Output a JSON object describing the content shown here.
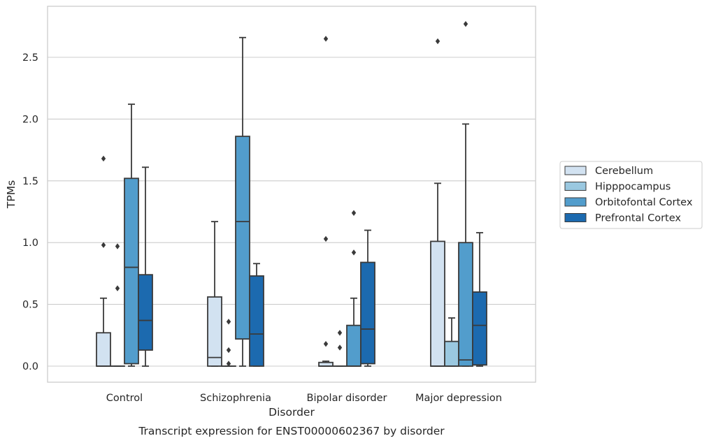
{
  "chart_data": {
    "type": "box",
    "title": "",
    "caption": "Transcript expression for ENST00000602367 by disorder",
    "xlabel": "Disorder",
    "ylabel": "TPMs",
    "ylim": [
      -0.13,
      2.92
    ],
    "yticks": [
      0.0,
      0.5,
      1.0,
      1.5,
      2.0,
      2.5
    ],
    "ytick_labels": [
      "0.0",
      "0.5",
      "1.0",
      "1.5",
      "2.0",
      "2.5"
    ],
    "grid": true,
    "legend_position": "right",
    "categories": [
      "Control",
      "Schizophrenia",
      "Bipolar disorder",
      "Major depression"
    ],
    "series": [
      {
        "name": "Cerebellum",
        "color": "#d2e2f1",
        "boxes": [
          {
            "q1": 0.0,
            "median": 0.0,
            "q3": 0.27,
            "whisker_low": 0.0,
            "whisker_high": 0.55,
            "outliers": [
              1.68,
              0.98
            ]
          },
          {
            "q1": 0.0,
            "median": 0.07,
            "q3": 0.56,
            "whisker_low": 0.0,
            "whisker_high": 1.17,
            "outliers": []
          },
          {
            "q1": 0.0,
            "median": 0.0,
            "q3": 0.03,
            "whisker_low": 0.0,
            "whisker_high": 0.04,
            "outliers": [
              2.65,
              1.03,
              0.18
            ]
          },
          {
            "q1": 0.0,
            "median": 0.0,
            "q3": 1.01,
            "whisker_low": 0.0,
            "whisker_high": 1.48,
            "outliers": [
              2.63
            ]
          }
        ]
      },
      {
        "name": "Hipppocampus",
        "color": "#9ac8e0",
        "boxes": [
          {
            "q1": 0.0,
            "median": 0.0,
            "q3": 0.0,
            "whisker_low": 0.0,
            "whisker_high": 0.0,
            "outliers": [
              0.97,
              0.63
            ]
          },
          {
            "q1": 0.0,
            "median": 0.0,
            "q3": 0.0,
            "whisker_low": 0.0,
            "whisker_high": 0.0,
            "outliers": [
              0.36,
              0.13,
              0.02
            ]
          },
          {
            "q1": 0.0,
            "median": 0.0,
            "q3": 0.0,
            "whisker_low": 0.0,
            "whisker_high": 0.0,
            "outliers": [
              0.27,
              0.15
            ]
          },
          {
            "q1": 0.0,
            "median": 0.0,
            "q3": 0.2,
            "whisker_low": 0.0,
            "whisker_high": 0.39,
            "outliers": []
          }
        ]
      },
      {
        "name": "Orbitofontal Cortex",
        "color": "#529dcc",
        "boxes": [
          {
            "q1": 0.02,
            "median": 0.8,
            "q3": 1.52,
            "whisker_low": 0.0,
            "whisker_high": 2.12,
            "outliers": []
          },
          {
            "q1": 0.22,
            "median": 1.17,
            "q3": 1.86,
            "whisker_low": 0.0,
            "whisker_high": 2.66,
            "outliers": []
          },
          {
            "q1": 0.0,
            "median": 0.0,
            "q3": 0.33,
            "whisker_low": 0.0,
            "whisker_high": 0.55,
            "outliers": [
              1.24,
              0.92
            ]
          },
          {
            "q1": 0.0,
            "median": 0.05,
            "q3": 1.0,
            "whisker_low": 0.0,
            "whisker_high": 1.96,
            "outliers": [
              2.77
            ]
          }
        ]
      },
      {
        "name": "Prefrontal Cortex",
        "color": "#1c6aaf",
        "boxes": [
          {
            "q1": 0.13,
            "median": 0.37,
            "q3": 0.74,
            "whisker_low": 0.0,
            "whisker_high": 1.61,
            "outliers": []
          },
          {
            "q1": 0.0,
            "median": 0.26,
            "q3": 0.73,
            "whisker_low": 0.0,
            "whisker_high": 0.83,
            "outliers": []
          },
          {
            "q1": 0.02,
            "median": 0.3,
            "q3": 0.84,
            "whisker_low": 0.0,
            "whisker_high": 1.1,
            "outliers": []
          },
          {
            "q1": 0.01,
            "median": 0.33,
            "q3": 0.6,
            "whisker_low": 0.0,
            "whisker_high": 1.08,
            "outliers": []
          }
        ]
      }
    ],
    "colors": {
      "grid": "#cccccc",
      "frame": "#cccccc",
      "line": "#3a3a3a",
      "text": "#262626"
    }
  }
}
